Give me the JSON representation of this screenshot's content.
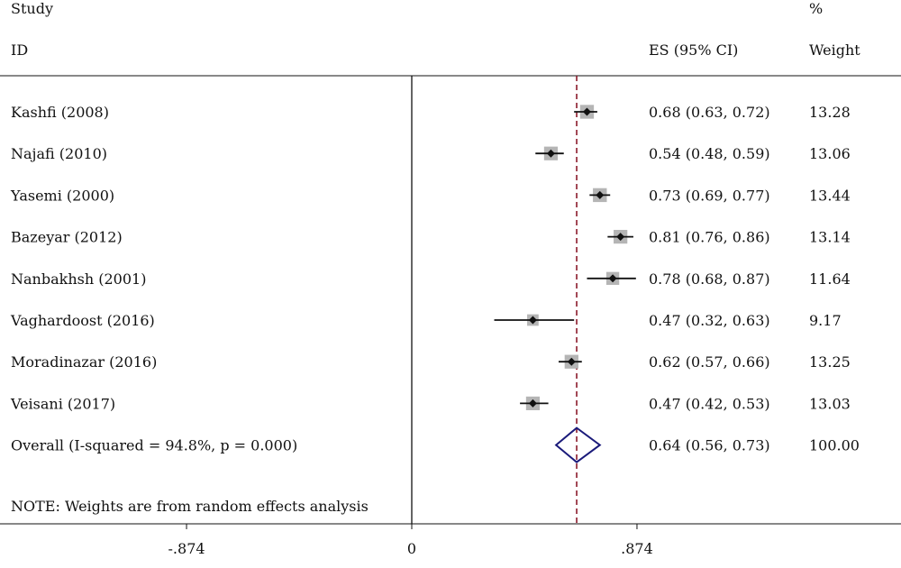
{
  "header": {
    "study_label": "Study",
    "id_label": "ID",
    "es_label": "ES (95% CI)",
    "weight_pct_label": "%",
    "weight_label": "Weight"
  },
  "note": "NOTE: Weights are from random effects analysis",
  "colors": {
    "marker": "#111111",
    "weight_box": "#b5b5b5",
    "overall_diamond": "#1a1a7a",
    "overall_line": "#8b1a2b",
    "axis": "#111111"
  },
  "chart_data": {
    "type": "forest",
    "x_ticks": [
      {
        "value": -0.874,
        "label": "-.874"
      },
      {
        "value": 0,
        "label": "0"
      },
      {
        "value": 0.874,
        "label": ".874"
      }
    ],
    "xlim": [
      -1.59,
      1.89
    ],
    "null_line": 0,
    "studies": [
      {
        "id": "Kashfi (2008)",
        "es": 0.68,
        "lo": 0.63,
        "hi": 0.72,
        "es_text": "0.68 (0.63, 0.72)",
        "weight": 13.28,
        "weight_text": "13.28"
      },
      {
        "id": "Najafi (2010)",
        "es": 0.54,
        "lo": 0.48,
        "hi": 0.59,
        "es_text": "0.54 (0.48, 0.59)",
        "weight": 13.06,
        "weight_text": "13.06"
      },
      {
        "id": "Yasemi (2000)",
        "es": 0.73,
        "lo": 0.69,
        "hi": 0.77,
        "es_text": "0.73 (0.69, 0.77)",
        "weight": 13.44,
        "weight_text": "13.44"
      },
      {
        "id": "Bazeyar (2012)",
        "es": 0.81,
        "lo": 0.76,
        "hi": 0.86,
        "es_text": "0.81 (0.76, 0.86)",
        "weight": 13.14,
        "weight_text": "13.14"
      },
      {
        "id": "Nanbakhsh (2001)",
        "es": 0.78,
        "lo": 0.68,
        "hi": 0.87,
        "es_text": "0.78 (0.68, 0.87)",
        "weight": 11.64,
        "weight_text": "11.64"
      },
      {
        "id": "Vaghardoost (2016)",
        "es": 0.47,
        "lo": 0.32,
        "hi": 0.63,
        "es_text": "0.47 (0.32, 0.63)",
        "weight": 9.17,
        "weight_text": "9.17"
      },
      {
        "id": "Moradinazar (2016)",
        "es": 0.62,
        "lo": 0.57,
        "hi": 0.66,
        "es_text": "0.62 (0.57, 0.66)",
        "weight": 13.25,
        "weight_text": "13.25"
      },
      {
        "id": "Veisani (2017)",
        "es": 0.47,
        "lo": 0.42,
        "hi": 0.53,
        "es_text": "0.47 (0.42, 0.53)",
        "weight": 13.03,
        "weight_text": "13.03"
      }
    ],
    "overall": {
      "label": "Overall  (I-squared = 94.8%, p = 0.000)",
      "es": 0.64,
      "lo": 0.56,
      "hi": 0.73,
      "es_text": "0.64 (0.56, 0.73)",
      "weight_text": "100.00"
    }
  }
}
